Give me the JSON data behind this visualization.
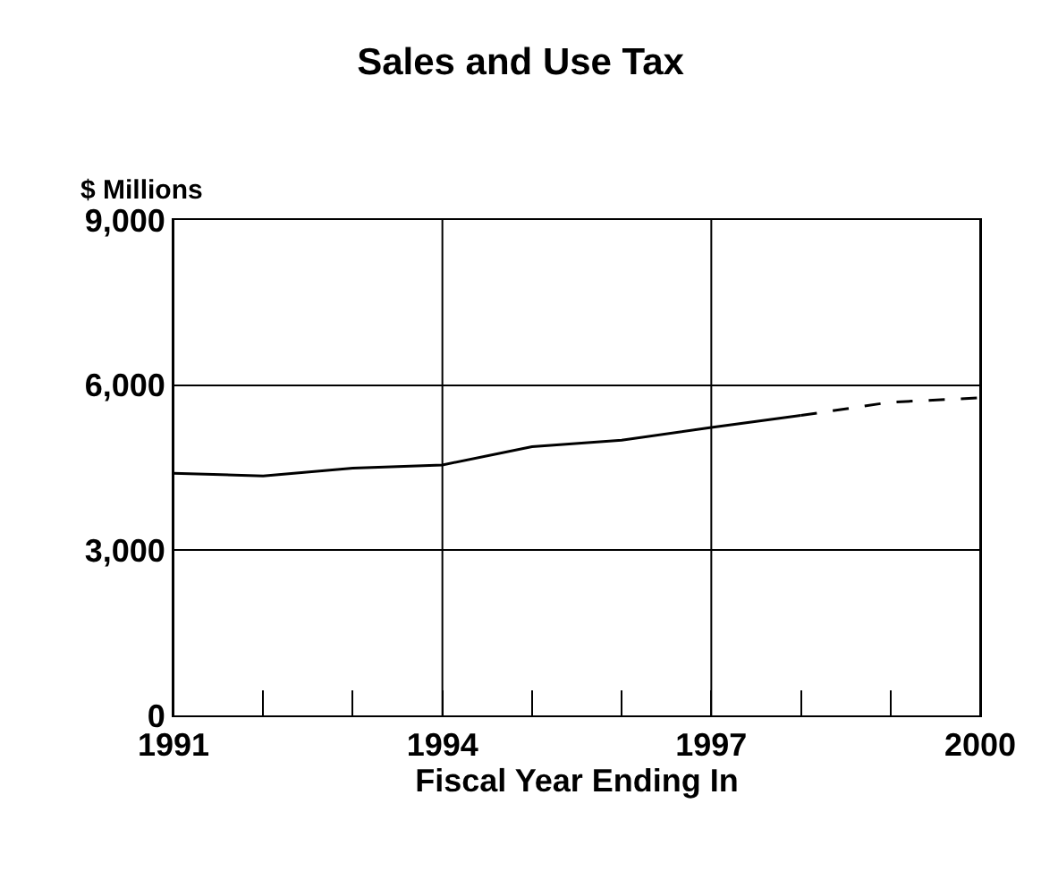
{
  "chart_data": {
    "type": "line",
    "title": "Sales and Use Tax",
    "xlabel": "Fiscal Year Ending In",
    "ylabel": "$ Millions",
    "series": [
      {
        "color": "#000000",
        "line_style": "solid",
        "x": [
          1991,
          1992,
          1993,
          1994,
          1995,
          1996,
          1997,
          1998
        ],
        "values": [
          4400,
          4350,
          4490,
          4550,
          4880,
          5000,
          5230,
          5450
        ]
      },
      {
        "color": "#000000",
        "line_style": "dashed",
        "x": [
          1998,
          1999,
          2000
        ],
        "values": [
          5450,
          5690,
          5770
        ]
      }
    ],
    "xlim": [
      1991,
      2000
    ],
    "xticks": [
      1991,
      {
        "value": 1992,
        "label": null
      },
      {
        "value": 1993,
        "label": null
      },
      1994,
      {
        "value": 1995,
        "label": null
      },
      {
        "value": 1996,
        "label": null
      },
      1997,
      {
        "value": 1998,
        "label": null
      },
      {
        "value": 1999,
        "label": null
      },
      2000
    ],
    "ylim": [
      0,
      9000
    ],
    "yticks": [
      {
        "value": 0,
        "label": "0"
      },
      {
        "value": 3000,
        "label": "3,000"
      },
      {
        "value": 6000,
        "label": "6,000"
      },
      {
        "value": 9000,
        "label": "9,000"
      }
    ],
    "grid": true,
    "marker": "none"
  }
}
